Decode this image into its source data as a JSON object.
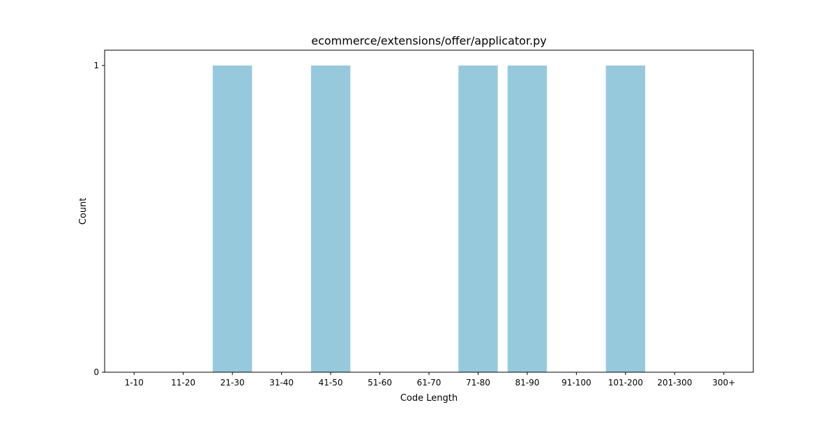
{
  "chart_data": {
    "type": "bar",
    "title": "ecommerce/extensions/offer/applicator.py",
    "xlabel": "Code Length",
    "ylabel": "Count",
    "categories": [
      "1-10",
      "11-20",
      "21-30",
      "31-40",
      "41-50",
      "51-60",
      "61-70",
      "71-80",
      "81-90",
      "91-100",
      "101-200",
      "201-300",
      "300+"
    ],
    "values": [
      0,
      0,
      1,
      0,
      1,
      0,
      0,
      1,
      1,
      0,
      1,
      0,
      0
    ],
    "ylim": [
      0,
      1.05
    ],
    "yticks": [
      0,
      1
    ],
    "grid": false,
    "legend": "none",
    "bar_color": "#96c9dc"
  }
}
